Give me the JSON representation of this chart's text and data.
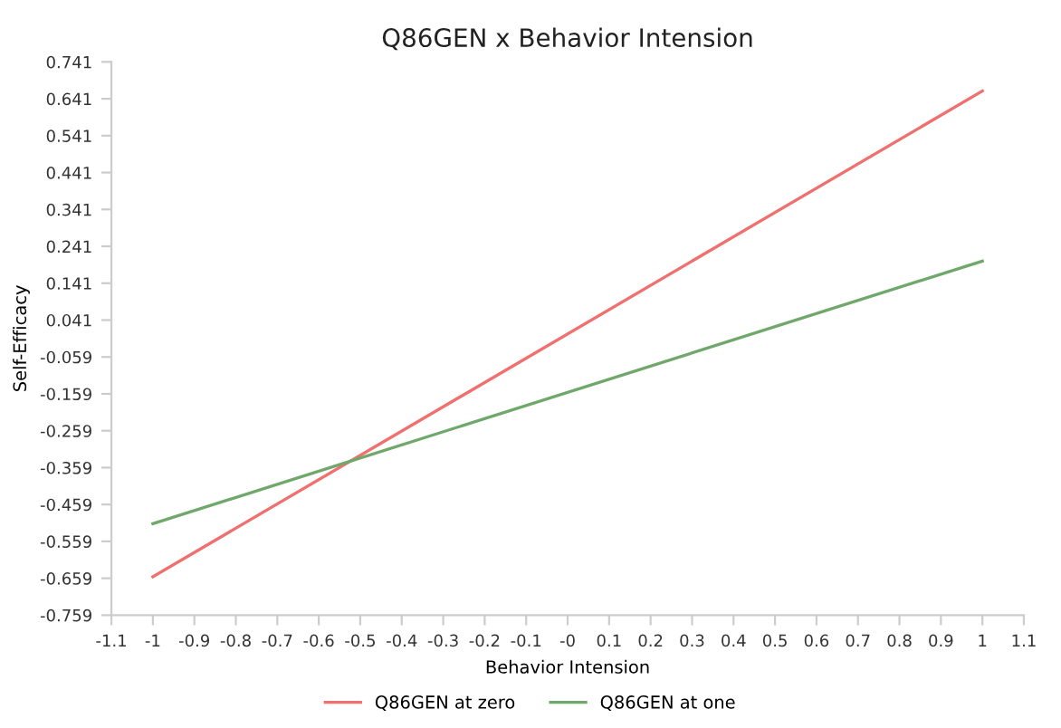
{
  "chart_data": {
    "type": "line",
    "title": "Q86GEN x Behavior Intension",
    "xlabel": "Behavior Intension",
    "ylabel": "Self-Efficacy",
    "x": [
      -1,
      1
    ],
    "series": [
      {
        "name": "Q86GEN at zero",
        "color": "#f07070",
        "values": [
          -0.655,
          0.662
        ]
      },
      {
        "name": "Q86GEN at one",
        "color": "#6fa86a",
        "values": [
          -0.511,
          0.201
        ]
      }
    ],
    "xlim": [
      -1.1,
      1.1
    ],
    "xticks": [
      -1.1,
      -1,
      -0.9,
      -0.8,
      -0.7,
      -0.6,
      -0.5,
      -0.4,
      -0.3,
      -0.2,
      -0.1,
      {
        "value": 0,
        "label": "-0"
      },
      0.1,
      0.2,
      0.3,
      0.4,
      0.5,
      0.6,
      0.7,
      0.8,
      0.9,
      1,
      1.1
    ],
    "ylim": [
      -0.759,
      0.741
    ],
    "yticks": [
      -0.759,
      -0.659,
      -0.559,
      -0.459,
      -0.359,
      -0.259,
      -0.159,
      -0.059,
      0.041,
      0.141,
      0.241,
      0.341,
      0.441,
      0.541,
      0.641,
      0.741
    ],
    "grid": false,
    "legend": "bottom",
    "marker": "none",
    "line_style": "solid"
  }
}
